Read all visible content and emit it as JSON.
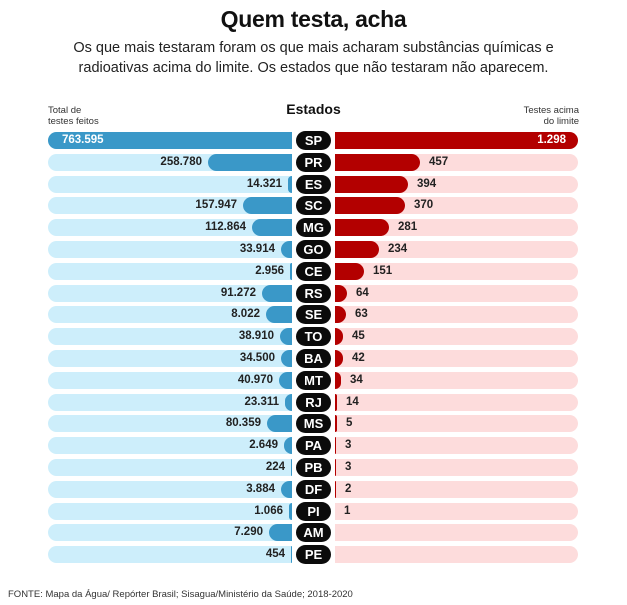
{
  "title": "Quem testa, acha",
  "subtitle": "Os que mais testaram foram os que mais acharam substâncias químicas e radioativas acima do limite. Os estados que não testaram não aparecem.",
  "headers": {
    "left_line1": "Total de",
    "left_line2": "testes feitos",
    "center": "Estados",
    "right_line1": "Testes acima",
    "right_line2": "do limite"
  },
  "source": "FONTE:  Mapa da Água/ Repórter Brasil; Sisagua/Ministério da Saúde; 2018-2020",
  "colors": {
    "blue_bar": "#3a98c8",
    "blue_track": "#cdeefb",
    "red_bar": "#b30000",
    "red_track": "#fddcdc",
    "pill": "#0b0b0b"
  },
  "rows": [
    {
      "state": "SP",
      "tests": "763.595",
      "above": "1.298",
      "lw": 244,
      "rw": 243
    },
    {
      "state": "PR",
      "tests": "258.780",
      "above": "457",
      "lw": 84,
      "rw": 85
    },
    {
      "state": "ES",
      "tests": "14.321",
      "above": "394",
      "lw": 4,
      "rw": 73
    },
    {
      "state": "SC",
      "tests": "157.947",
      "above": "370",
      "lw": 49,
      "rw": 70
    },
    {
      "state": "MG",
      "tests": "112.864",
      "above": "281",
      "lw": 40,
      "rw": 54
    },
    {
      "state": "GO",
      "tests": "33.914",
      "above": "234",
      "lw": 11,
      "rw": 44
    },
    {
      "state": "CE",
      "tests": "2.956",
      "above": "151",
      "lw": 2,
      "rw": 29
    },
    {
      "state": "RS",
      "tests": "91.272",
      "above": "64",
      "lw": 30,
      "rw": 12
    },
    {
      "state": "SE",
      "tests": "8.022",
      "above": "63",
      "lw": 26,
      "rw": 11
    },
    {
      "state": "TO",
      "tests": "38.910",
      "above": "45",
      "lw": 12,
      "rw": 8
    },
    {
      "state": "BA",
      "tests": "34.500",
      "above": "42",
      "lw": 11,
      "rw": 8
    },
    {
      "state": "MT",
      "tests": "40.970",
      "above": "34",
      "lw": 13,
      "rw": 6
    },
    {
      "state": "RJ",
      "tests": "23.311",
      "above": "14",
      "lw": 7,
      "rw": 2
    },
    {
      "state": "MS",
      "tests": "80.359",
      "above": "5",
      "lw": 25,
      "rw": 2
    },
    {
      "state": "PA",
      "tests": "2.649",
      "above": "3",
      "lw": 8,
      "rw": 1
    },
    {
      "state": "PB",
      "tests": "224",
      "above": "3",
      "lw": 1,
      "rw": 1
    },
    {
      "state": "DF",
      "tests": "3.884",
      "above": "2",
      "lw": 11,
      "rw": 1
    },
    {
      "state": "PI",
      "tests": "1.066",
      "above": "1",
      "lw": 3,
      "rw": 0
    },
    {
      "state": "AM",
      "tests": "7.290",
      "above": "",
      "lw": 23,
      "rw": 0
    },
    {
      "state": "PE",
      "tests": "454",
      "above": "",
      "lw": 1,
      "rw": 0
    }
  ],
  "chart_data": {
    "type": "bar",
    "orientation": "horizontal-diverging",
    "title": "Quem testa, acha",
    "subtitle": "Os que mais testaram foram os que mais acharam substâncias químicas e radioativas acima do limite. Os estados que não testaram não aparecem.",
    "categories": [
      "SP",
      "PR",
      "ES",
      "SC",
      "MG",
      "GO",
      "CE",
      "RS",
      "SE",
      "TO",
      "BA",
      "MT",
      "RJ",
      "MS",
      "PA",
      "PB",
      "DF",
      "PI",
      "AM",
      "PE"
    ],
    "series": [
      {
        "name": "Total de testes feitos",
        "side": "left",
        "color": "#3a98c8",
        "values": [
          763595,
          258780,
          14321,
          157947,
          112864,
          33914,
          2956,
          91272,
          8022,
          38910,
          34500,
          40970,
          23311,
          80359,
          2649,
          224,
          3884,
          1066,
          7290,
          454
        ]
      },
      {
        "name": "Testes acima do limite",
        "side": "right",
        "color": "#b30000",
        "values": [
          1298,
          457,
          394,
          370,
          281,
          234,
          151,
          64,
          63,
          45,
          42,
          34,
          14,
          5,
          3,
          3,
          2,
          1,
          null,
          null
        ]
      }
    ],
    "xlabel": "",
    "ylabel": "Estados",
    "legend": "column headers above each side",
    "grid": false,
    "source": "FONTE:  Mapa da Água/ Repórter Brasil; Sisagua/Ministério da Saúde; 2018-2020"
  }
}
